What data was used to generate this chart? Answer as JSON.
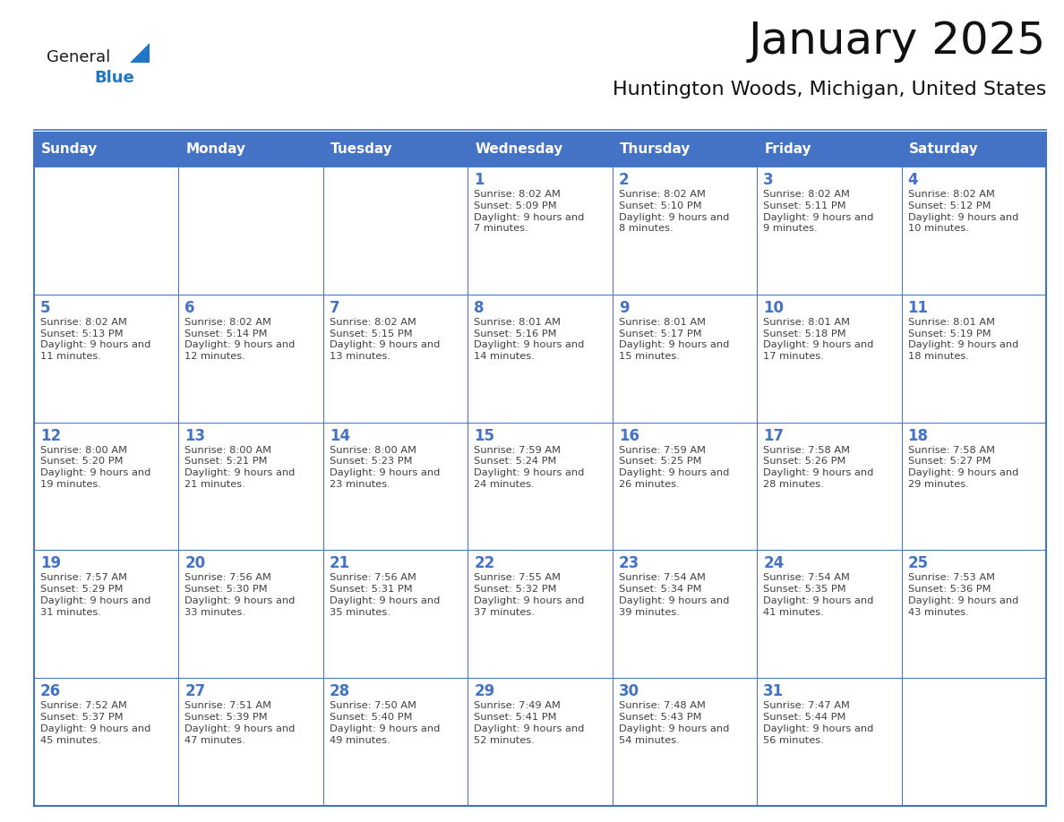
{
  "title": "January 2025",
  "subtitle": "Huntington Woods, Michigan, United States",
  "days_of_week": [
    "Sunday",
    "Monday",
    "Tuesday",
    "Wednesday",
    "Thursday",
    "Friday",
    "Saturday"
  ],
  "header_bg": "#4472c4",
  "header_text": "#ffffff",
  "cell_bg": "#ffffff",
  "border_color": "#4472c4",
  "day_number_color": "#4472c4",
  "text_color": "#404040",
  "logo_general_color": "#1a1a1a",
  "logo_blue_color": "#2176c7",
  "calendar_data": [
    [
      null,
      null,
      null,
      {
        "day": 1,
        "sunrise": "8:02 AM",
        "sunset": "5:09 PM",
        "daylight": "9 hours and 7 minutes."
      },
      {
        "day": 2,
        "sunrise": "8:02 AM",
        "sunset": "5:10 PM",
        "daylight": "9 hours and 8 minutes."
      },
      {
        "day": 3,
        "sunrise": "8:02 AM",
        "sunset": "5:11 PM",
        "daylight": "9 hours and 9 minutes."
      },
      {
        "day": 4,
        "sunrise": "8:02 AM",
        "sunset": "5:12 PM",
        "daylight": "9 hours and 10 minutes."
      }
    ],
    [
      {
        "day": 5,
        "sunrise": "8:02 AM",
        "sunset": "5:13 PM",
        "daylight": "9 hours and 11 minutes."
      },
      {
        "day": 6,
        "sunrise": "8:02 AM",
        "sunset": "5:14 PM",
        "daylight": "9 hours and 12 minutes."
      },
      {
        "day": 7,
        "sunrise": "8:02 AM",
        "sunset": "5:15 PM",
        "daylight": "9 hours and 13 minutes."
      },
      {
        "day": 8,
        "sunrise": "8:01 AM",
        "sunset": "5:16 PM",
        "daylight": "9 hours and 14 minutes."
      },
      {
        "day": 9,
        "sunrise": "8:01 AM",
        "sunset": "5:17 PM",
        "daylight": "9 hours and 15 minutes."
      },
      {
        "day": 10,
        "sunrise": "8:01 AM",
        "sunset": "5:18 PM",
        "daylight": "9 hours and 17 minutes."
      },
      {
        "day": 11,
        "sunrise": "8:01 AM",
        "sunset": "5:19 PM",
        "daylight": "9 hours and 18 minutes."
      }
    ],
    [
      {
        "day": 12,
        "sunrise": "8:00 AM",
        "sunset": "5:20 PM",
        "daylight": "9 hours and 19 minutes."
      },
      {
        "day": 13,
        "sunrise": "8:00 AM",
        "sunset": "5:21 PM",
        "daylight": "9 hours and 21 minutes."
      },
      {
        "day": 14,
        "sunrise": "8:00 AM",
        "sunset": "5:23 PM",
        "daylight": "9 hours and 23 minutes."
      },
      {
        "day": 15,
        "sunrise": "7:59 AM",
        "sunset": "5:24 PM",
        "daylight": "9 hours and 24 minutes."
      },
      {
        "day": 16,
        "sunrise": "7:59 AM",
        "sunset": "5:25 PM",
        "daylight": "9 hours and 26 minutes."
      },
      {
        "day": 17,
        "sunrise": "7:58 AM",
        "sunset": "5:26 PM",
        "daylight": "9 hours and 28 minutes."
      },
      {
        "day": 18,
        "sunrise": "7:58 AM",
        "sunset": "5:27 PM",
        "daylight": "9 hours and 29 minutes."
      }
    ],
    [
      {
        "day": 19,
        "sunrise": "7:57 AM",
        "sunset": "5:29 PM",
        "daylight": "9 hours and 31 minutes."
      },
      {
        "day": 20,
        "sunrise": "7:56 AM",
        "sunset": "5:30 PM",
        "daylight": "9 hours and 33 minutes."
      },
      {
        "day": 21,
        "sunrise": "7:56 AM",
        "sunset": "5:31 PM",
        "daylight": "9 hours and 35 minutes."
      },
      {
        "day": 22,
        "sunrise": "7:55 AM",
        "sunset": "5:32 PM",
        "daylight": "9 hours and 37 minutes."
      },
      {
        "day": 23,
        "sunrise": "7:54 AM",
        "sunset": "5:34 PM",
        "daylight": "9 hours and 39 minutes."
      },
      {
        "day": 24,
        "sunrise": "7:54 AM",
        "sunset": "5:35 PM",
        "daylight": "9 hours and 41 minutes."
      },
      {
        "day": 25,
        "sunrise": "7:53 AM",
        "sunset": "5:36 PM",
        "daylight": "9 hours and 43 minutes."
      }
    ],
    [
      {
        "day": 26,
        "sunrise": "7:52 AM",
        "sunset": "5:37 PM",
        "daylight": "9 hours and 45 minutes."
      },
      {
        "day": 27,
        "sunrise": "7:51 AM",
        "sunset": "5:39 PM",
        "daylight": "9 hours and 47 minutes."
      },
      {
        "day": 28,
        "sunrise": "7:50 AM",
        "sunset": "5:40 PM",
        "daylight": "9 hours and 49 minutes."
      },
      {
        "day": 29,
        "sunrise": "7:49 AM",
        "sunset": "5:41 PM",
        "daylight": "9 hours and 52 minutes."
      },
      {
        "day": 30,
        "sunrise": "7:48 AM",
        "sunset": "5:43 PM",
        "daylight": "9 hours and 54 minutes."
      },
      {
        "day": 31,
        "sunrise": "7:47 AM",
        "sunset": "5:44 PM",
        "daylight": "9 hours and 56 minutes."
      },
      null
    ]
  ],
  "fig_width": 11.88,
  "fig_height": 9.18,
  "dpi": 100
}
